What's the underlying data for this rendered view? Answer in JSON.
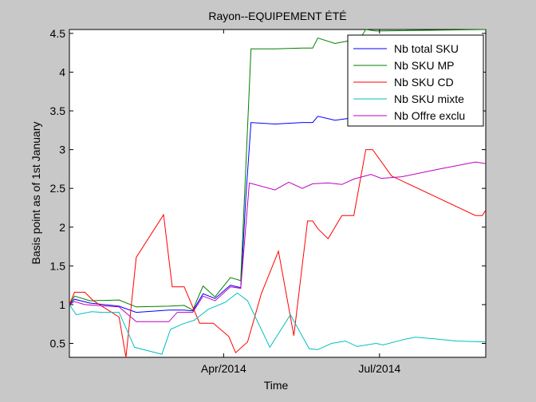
{
  "chart_data": {
    "type": "line",
    "title": "Rayon--EQUIPEMENT ÉTÉ",
    "xlabel": "Time",
    "ylabel": "Basis point as of 1st January",
    "xlim": [
      "2014-01-01",
      "2014-09-01"
    ],
    "ylim": [
      0.32,
      4.55
    ],
    "x_ticks": [
      {
        "label": "Apr/2014",
        "date": "2014-04-01"
      },
      {
        "label": "Jul/2014",
        "date": "2014-07-01"
      }
    ],
    "y_ticks": [
      "0.5",
      "1",
      "1.5",
      "2",
      "2.5",
      "3",
      "3.5",
      "4",
      "4.5"
    ],
    "y_tick_values": [
      0.5,
      1,
      1.5,
      2,
      2.5,
      3,
      3.5,
      4,
      4.5
    ],
    "grid": false,
    "legend_position": "top-right",
    "series": [
      {
        "name": "Nb total SKU",
        "color": "#0000ff",
        "points": [
          [
            "2014-01-01",
            1.0
          ],
          [
            "2014-01-04",
            1.07
          ],
          [
            "2014-01-13",
            1.02
          ],
          [
            "2014-01-30",
            0.98
          ],
          [
            "2014-02-09",
            0.9
          ],
          [
            "2014-02-28",
            0.93
          ],
          [
            "2014-03-09",
            0.93
          ],
          [
            "2014-03-14",
            0.92
          ],
          [
            "2014-03-20",
            1.14
          ],
          [
            "2014-03-27",
            1.08
          ],
          [
            "2014-04-05",
            1.25
          ],
          [
            "2014-04-11",
            1.22
          ],
          [
            "2014-04-14",
            2.4
          ],
          [
            "2014-04-17",
            3.35
          ],
          [
            "2014-05-01",
            3.33
          ],
          [
            "2014-05-17",
            3.35
          ],
          [
            "2014-05-23",
            3.35
          ],
          [
            "2014-05-26",
            3.43
          ],
          [
            "2014-06-05",
            3.38
          ],
          [
            "2014-06-12",
            3.4
          ],
          [
            "2014-06-19",
            3.41
          ],
          [
            "2014-06-23",
            3.44
          ],
          [
            "2014-06-29",
            3.45
          ],
          [
            "2014-09-01",
            3.5
          ]
        ]
      },
      {
        "name": "Nb SKU MP",
        "color": "#007f00",
        "points": [
          [
            "2014-01-01",
            1.0
          ],
          [
            "2014-01-04",
            1.11
          ],
          [
            "2014-01-13",
            1.05
          ],
          [
            "2014-01-30",
            1.06
          ],
          [
            "2014-02-09",
            0.97
          ],
          [
            "2014-02-28",
            0.98
          ],
          [
            "2014-03-09",
            0.99
          ],
          [
            "2014-03-14",
            0.93
          ],
          [
            "2014-03-20",
            1.24
          ],
          [
            "2014-03-27",
            1.1
          ],
          [
            "2014-04-05",
            1.35
          ],
          [
            "2014-04-11",
            1.31
          ],
          [
            "2014-04-14",
            2.8
          ],
          [
            "2014-04-17",
            4.3
          ],
          [
            "2014-05-01",
            4.3
          ],
          [
            "2014-05-17",
            4.31
          ],
          [
            "2014-05-23",
            4.31
          ],
          [
            "2014-05-26",
            4.44
          ],
          [
            "2014-06-05",
            4.37
          ],
          [
            "2014-06-12",
            4.4
          ],
          [
            "2014-06-19",
            4.41
          ],
          [
            "2014-06-23",
            4.55
          ],
          [
            "2014-06-29",
            4.53
          ],
          [
            "2014-09-01",
            4.55
          ]
        ]
      },
      {
        "name": "Nb SKU CD",
        "color": "#ff0000",
        "points": [
          [
            "2014-01-01",
            1.0
          ],
          [
            "2014-01-04",
            1.16
          ],
          [
            "2014-01-10",
            1.16
          ],
          [
            "2014-01-15",
            1.05
          ],
          [
            "2014-01-30",
            0.84
          ],
          [
            "2014-02-03",
            0.32
          ],
          [
            "2014-02-09",
            1.61
          ],
          [
            "2014-02-25",
            2.16
          ],
          [
            "2014-03-02",
            1.23
          ],
          [
            "2014-03-09",
            1.23
          ],
          [
            "2014-03-18",
            0.76
          ],
          [
            "2014-03-26",
            0.76
          ],
          [
            "2014-04-04",
            0.59
          ],
          [
            "2014-04-08",
            0.38
          ],
          [
            "2014-04-15",
            0.52
          ],
          [
            "2014-04-23",
            1.14
          ],
          [
            "2014-05-03",
            1.69
          ],
          [
            "2014-05-12",
            0.6
          ],
          [
            "2014-05-20",
            2.08
          ],
          [
            "2014-05-23",
            2.08
          ],
          [
            "2014-05-26",
            1.98
          ],
          [
            "2014-06-01",
            1.85
          ],
          [
            "2014-06-09",
            2.15
          ],
          [
            "2014-06-16",
            2.15
          ],
          [
            "2014-06-23",
            3.0
          ],
          [
            "2014-06-27",
            3.0
          ],
          [
            "2014-07-08",
            2.66
          ],
          [
            "2014-08-26",
            2.15
          ],
          [
            "2014-08-30",
            2.15
          ],
          [
            "2014-09-01",
            2.22
          ]
        ]
      },
      {
        "name": "Nb SKU mixte",
        "color": "#00bfbf",
        "points": [
          [
            "2014-01-01",
            1.0
          ],
          [
            "2014-01-05",
            0.87
          ],
          [
            "2014-01-14",
            0.91
          ],
          [
            "2014-01-20",
            0.9
          ],
          [
            "2014-01-30",
            0.9
          ],
          [
            "2014-02-08",
            0.45
          ],
          [
            "2014-02-24",
            0.36
          ],
          [
            "2014-03-01",
            0.68
          ],
          [
            "2014-03-08",
            0.75
          ],
          [
            "2014-03-15",
            0.8
          ],
          [
            "2014-03-23",
            0.94
          ],
          [
            "2014-04-02",
            1.03
          ],
          [
            "2014-04-09",
            1.15
          ],
          [
            "2014-04-15",
            1.05
          ],
          [
            "2014-04-28",
            0.45
          ],
          [
            "2014-05-10",
            0.87
          ],
          [
            "2014-05-21",
            0.43
          ],
          [
            "2014-05-26",
            0.42
          ],
          [
            "2014-06-03",
            0.5
          ],
          [
            "2014-06-11",
            0.53
          ],
          [
            "2014-06-18",
            0.46
          ],
          [
            "2014-06-29",
            0.5
          ],
          [
            "2014-07-03",
            0.48
          ],
          [
            "2014-07-15",
            0.55
          ],
          [
            "2014-07-22",
            0.58
          ],
          [
            "2014-08-02",
            0.56
          ],
          [
            "2014-08-15",
            0.53
          ],
          [
            "2014-09-01",
            0.52
          ]
        ]
      },
      {
        "name": "Nb Offre exclu",
        "color": "#bf00bf",
        "points": [
          [
            "2014-01-01",
            1.0
          ],
          [
            "2014-01-04",
            1.04
          ],
          [
            "2014-01-10",
            1.0
          ],
          [
            "2014-01-30",
            0.97
          ],
          [
            "2014-02-09",
            0.78
          ],
          [
            "2014-02-28",
            0.78
          ],
          [
            "2014-03-05",
            0.9
          ],
          [
            "2014-03-14",
            0.9
          ],
          [
            "2014-03-20",
            1.11
          ],
          [
            "2014-03-27",
            1.05
          ],
          [
            "2014-04-05",
            1.23
          ],
          [
            "2014-04-11",
            1.21
          ],
          [
            "2014-04-16",
            2.57
          ],
          [
            "2014-05-01",
            2.48
          ],
          [
            "2014-05-09",
            2.58
          ],
          [
            "2014-05-17",
            2.5
          ],
          [
            "2014-05-23",
            2.56
          ],
          [
            "2014-06-01",
            2.57
          ],
          [
            "2014-06-09",
            2.55
          ],
          [
            "2014-06-16",
            2.62
          ],
          [
            "2014-06-26",
            2.68
          ],
          [
            "2014-07-02",
            2.63
          ],
          [
            "2014-07-14",
            2.65
          ],
          [
            "2014-08-05",
            2.75
          ],
          [
            "2014-08-26",
            2.84
          ],
          [
            "2014-09-01",
            2.82
          ]
        ]
      }
    ]
  }
}
